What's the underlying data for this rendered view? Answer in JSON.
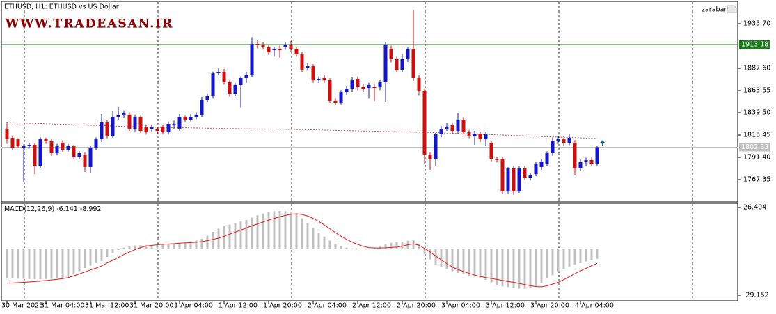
{
  "header": {
    "title": "ETHUSD, H1:  ETHUSD vs US Dollar",
    "watermark": "WWW.TRADEASAN.IR",
    "account": "zaraban"
  },
  "chart_data": [
    {
      "type": "candlestick",
      "x": [
        "30 Mar 2025",
        null,
        null,
        null,
        null,
        null,
        null,
        "31 Mar 04:00",
        null,
        null,
        null,
        null,
        null,
        null,
        null,
        "31 Mar 12:00",
        null,
        null,
        null,
        null,
        null,
        null,
        null,
        "31 Mar 20:00",
        null,
        null,
        null,
        null,
        null,
        null,
        null,
        "1 Apr 04:00",
        null,
        null,
        null,
        null,
        null,
        null,
        null,
        "1 Apr 12:00",
        null,
        null,
        null,
        null,
        null,
        null,
        null,
        "1 Apr 20:00",
        null,
        null,
        null,
        null,
        null,
        null,
        null,
        "2 Apr 04:00",
        null,
        null,
        null,
        null,
        null,
        null,
        null,
        "2 Apr 12:00",
        null,
        null,
        null,
        null,
        null,
        null,
        null,
        "2 Apr 20:00",
        null,
        null,
        null,
        null,
        null,
        null,
        null,
        "3 Apr 04:00",
        null,
        null,
        null,
        null,
        null,
        null,
        null,
        "3 Apr 12:00",
        null,
        null,
        null,
        null,
        null,
        null,
        null,
        "3 Apr 20:00",
        null,
        null,
        null,
        null,
        null,
        null,
        null,
        "4 Apr 04:00",
        null,
        null,
        null
      ],
      "open": [
        1822.2,
        1812.4,
        1810.9,
        1801.9,
        1803.4,
        1804.9,
        1782.4,
        1810.9,
        1808.7,
        1795.9,
        1807.2,
        1799.7,
        1803.4,
        1792.1,
        1794.4,
        1780.9,
        1801.9,
        1810.9,
        1829.7,
        1814.7,
        1835.0,
        1837.3,
        1837.3,
        1822.2,
        1835.0,
        1823.7,
        1821.5,
        1821.5,
        1824.5,
        1818.4,
        1825.9,
        1822.2,
        1835.0,
        1832.0,
        1835.0,
        1837.3,
        1853.8,
        1857.5,
        1882.3,
        1883.8,
        1872.6,
        1859.8,
        1869.6,
        1877.1,
        1880.1,
        1913.9,
        1912.4,
        1910.1,
        1907.1,
        1908.6,
        1910.1,
        1912.4,
        1908.6,
        1902.6,
        1887.6,
        1889.8,
        1874.8,
        1877.1,
        1874.8,
        1852.3,
        1850.0,
        1862.0,
        1865.0,
        1876.3,
        1867.3,
        1865.8,
        1867.3,
        1867.3,
        1872.6,
        1908.6,
        1897.4,
        1886.1,
        1897.4,
        1908.6,
        1877.1,
        1863.6,
        1794.4,
        1789.9,
        1816.2,
        1822.2,
        1825.9,
        1819.9,
        1832.0,
        1818.4,
        1814.7,
        1816.9,
        1810.9,
        1807.2,
        1789.9,
        1789.9,
        1754.6,
        1779.4,
        1754.6,
        1779.4,
        1769.6,
        1773.3,
        1780.9,
        1784.6,
        1795.9,
        1809.4,
        1810.9,
        1807.2,
        1807.2,
        1779.4,
        1786.1,
        1788.4,
        1784.6
      ],
      "high": [
        1829.7,
        1815.0,
        1812.0,
        1805.5,
        1807.0,
        1806.5,
        1813.0,
        1812.5,
        1811.0,
        1806.0,
        1810.0,
        1806.0,
        1805.0,
        1798.0,
        1797.0,
        1804.0,
        1813.0,
        1838.0,
        1832.0,
        1841.0,
        1845.5,
        1842.0,
        1840.0,
        1837.5,
        1837.0,
        1826.0,
        1826.0,
        1824.0,
        1827.0,
        1830.0,
        1831.0,
        1838.0,
        1837.0,
        1838.0,
        1840.0,
        1856.0,
        1860.0,
        1884.0,
        1888.0,
        1887.0,
        1875.0,
        1872.0,
        1879.0,
        1884.0,
        1921.0,
        1918.0,
        1916.0,
        1913.0,
        1911.0,
        1912.0,
        1915.5,
        1917.0,
        1911.0,
        1905.0,
        1893.0,
        1892.0,
        1879.0,
        1880.0,
        1877.0,
        1855.0,
        1864.0,
        1868.0,
        1878.0,
        1879.0,
        1870.0,
        1872.0,
        1870.0,
        1875.0,
        1916.0,
        1912.0,
        1900.0,
        1903.0,
        1911.0,
        1950.7,
        1880.0,
        1865.0,
        1797.0,
        1818.0,
        1825.0,
        1829.0,
        1828.0,
        1839.0,
        1835.0,
        1821.0,
        1820.0,
        1819.0,
        1819.0,
        1809.0,
        1792.0,
        1792.0,
        1781.0,
        1782.0,
        1781.5,
        1782.0,
        1775.0,
        1787.0,
        1789.5,
        1798.0,
        1813.0,
        1814.0,
        1814.5,
        1816.0,
        1810.0,
        1789.0,
        1791.0,
        1791.0,
        1803.8
      ],
      "low": [
        1806.0,
        1799.0,
        1801.0,
        1764.3,
        1801.0,
        1773.3,
        1780.0,
        1806.0,
        1793.0,
        1793.5,
        1797.0,
        1797.5,
        1790.0,
        1790.0,
        1775.5,
        1774.9,
        1799.5,
        1808.0,
        1812.0,
        1812.5,
        1832.0,
        1834.0,
        1820.0,
        1819.5,
        1817.5,
        1816.0,
        1819.0,
        1817.0,
        1816.5,
        1816.0,
        1822.0,
        1820.0,
        1829.5,
        1830.0,
        1832.5,
        1835.0,
        1851.0,
        1855.0,
        1880.0,
        1870.0,
        1857.0,
        1857.5,
        1845.0,
        1872.0,
        1878.0,
        1909.0,
        1907.5,
        1902.0,
        1900.0,
        1899.0,
        1907.5,
        1905.0,
        1900.0,
        1883.5,
        1885.0,
        1872.0,
        1872.0,
        1872.0,
        1850.0,
        1848.0,
        1848.0,
        1859.0,
        1862.0,
        1864.0,
        1862.0,
        1855.0,
        1852.0,
        1864.0,
        1851.0,
        1894.0,
        1883.0,
        1883.5,
        1894.5,
        1874.0,
        1858.0,
        1784.6,
        1778.0,
        1782.0,
        1813.0,
        1820.0,
        1817.0,
        1817.0,
        1816.0,
        1812.0,
        1805.0,
        1808.0,
        1804.0,
        1787.0,
        1786.0,
        1752.0,
        1752.5,
        1751.0,
        1753.0,
        1767.0,
        1766.5,
        1771.0,
        1778.0,
        1782.0,
        1793.0,
        1806.0,
        1804.0,
        1804.5,
        1772.0,
        1777.0,
        1782.5,
        1782.0,
        1782.5
      ],
      "close": [
        1810.9,
        1801.9,
        1803.4,
        1803.4,
        1804.9,
        1782.4,
        1810.9,
        1808.7,
        1795.9,
        1803.4,
        1799.7,
        1803.4,
        1792.1,
        1795.9,
        1780.9,
        1801.9,
        1810.9,
        1829.7,
        1814.7,
        1835.0,
        1837.3,
        1839.5,
        1822.2,
        1835.0,
        1819.9,
        1818.4,
        1823.7,
        1819.9,
        1818.4,
        1827.4,
        1827.4,
        1835.0,
        1832.0,
        1835.0,
        1837.3,
        1853.8,
        1857.5,
        1882.3,
        1883.8,
        1872.6,
        1859.8,
        1869.6,
        1877.1,
        1880.1,
        1913.9,
        1912.4,
        1910.1,
        1904.9,
        1908.6,
        1907.1,
        1912.4,
        1908.6,
        1902.6,
        1886.1,
        1889.8,
        1874.8,
        1876.3,
        1874.8,
        1852.3,
        1850.0,
        1862.0,
        1865.0,
        1874.8,
        1867.3,
        1865.0,
        1869.6,
        1865.8,
        1872.6,
        1912.4,
        1897.4,
        1886.1,
        1897.4,
        1908.6,
        1877.1,
        1863.6,
        1794.4,
        1789.9,
        1816.2,
        1822.2,
        1824.5,
        1819.9,
        1832.0,
        1818.4,
        1814.7,
        1816.9,
        1810.9,
        1816.2,
        1789.9,
        1788.4,
        1754.6,
        1779.4,
        1754.6,
        1779.4,
        1769.6,
        1771.8,
        1784.6,
        1786.9,
        1795.9,
        1809.4,
        1810.9,
        1807.2,
        1812.4,
        1779.4,
        1786.1,
        1788.4,
        1784.6,
        1802.33
      ],
      "up_color": "#1515c8",
      "down_color": "#cc1010",
      "ma": {
        "color": "#c84040",
        "values": [
          1829.0,
          1828.8,
          1828.6,
          1828.4,
          1828.2,
          1828.0,
          1827.8,
          1827.6,
          1827.4,
          1827.2,
          1827.0,
          1826.8,
          1826.6,
          1826.4,
          1826.2,
          1826.0,
          1825.8,
          1825.6,
          1825.4,
          1825.2,
          1825.0,
          1824.8,
          1824.6,
          1824.4,
          1824.2,
          1824.0,
          1823.8,
          1823.7,
          1823.6,
          1823.5,
          1823.4,
          1823.3,
          1823.2,
          1823.1,
          1823.0,
          1822.9,
          1822.8,
          1822.7,
          1822.6,
          1822.5,
          1822.4,
          1822.3,
          1822.2,
          1822.1,
          1822.0,
          1821.9,
          1821.8,
          1821.8,
          1821.7,
          1821.6,
          1821.6,
          1821.5,
          1821.4,
          1821.3,
          1821.1,
          1821.0,
          1820.9,
          1820.7,
          1820.6,
          1820.5,
          1820.3,
          1820.2,
          1820.1,
          1819.9,
          1819.8,
          1819.7,
          1819.5,
          1819.4,
          1819.3,
          1819.1,
          1819.0,
          1818.9,
          1818.7,
          1818.6,
          1818.5,
          1818.4,
          1818.2,
          1818.0,
          1817.8,
          1817.5,
          1817.3,
          1817.1,
          1816.9,
          1816.7,
          1816.5,
          1816.2,
          1816.0,
          1815.8,
          1815.6,
          1815.4,
          1815.2,
          1814.9,
          1814.7,
          1814.5,
          1814.3,
          1814.1,
          1813.8,
          1813.6,
          1813.4,
          1813.2,
          1813.0,
          1812.8,
          1812.6,
          1812.4,
          1812.2,
          1811.9,
          1811.7
        ]
      },
      "hline": {
        "value": 1913.18,
        "color": "#1a7a1a"
      },
      "last_color": "#c0c0c0",
      "ylim": [
        1743.3,
        1959.75
      ],
      "yticks": [
        {
          "value": 1935.7,
          "label": "1935.70"
        },
        {
          "value": 1887.6,
          "label": "1887.60"
        },
        1863.55,
        {
          "value": 1839.5,
          "label": "1839.50"
        },
        1815.45,
        {
          "value": 1791.4,
          "label": "1791.40"
        },
        1767.35
      ]
    },
    {
      "type": "macd",
      "title": "MACD(12,26,9)",
      "color": "#c0c0c0",
      "values": [
        -18.5,
        -18.6,
        -18.7,
        -18.8,
        -18.9,
        -19.0,
        -19.0,
        -18.9,
        -18.8,
        -18.6,
        -18.4,
        -18.2,
        -16.0,
        -14.0,
        -12.0,
        -10.5,
        -8.8,
        -7.5,
        -5.0,
        -2.5,
        -0.5,
        1.0,
        2.0,
        2.4,
        2.6,
        2.7,
        2.7,
        2.7,
        3.0,
        3.3,
        3.6,
        4.0,
        4.5,
        5.0,
        5.5,
        6.6,
        8.5,
        11.0,
        13.0,
        14.5,
        15.5,
        16.5,
        17.5,
        18.5,
        20.0,
        21.5,
        22.5,
        23.5,
        24.0,
        24.2,
        24.0,
        23.5,
        22.0,
        19.5,
        16.5,
        13.5,
        10.5,
        8.0,
        5.5,
        3.0,
        1.8,
        1.0,
        0.5,
        0.3,
        0.3,
        0.4,
        1.0,
        2.0,
        3.5,
        4.0,
        4.5,
        4.8,
        5.3,
        5.7,
        3.0,
        -3.0,
        -6.5,
        -9.7,
        -11.0,
        -12.5,
        -14.0,
        -15.0,
        -16.0,
        -16.8,
        -17.5,
        -18.5,
        -19.5,
        -21.0,
        -22.5,
        -23.5,
        -24.0,
        -24.6,
        -25.0,
        -25.0,
        -24.5,
        -23.8,
        -21.5,
        -18.5,
        -16.5,
        -14.0,
        -12.5,
        -11.0,
        -9.7,
        -8.8,
        -7.8,
        -7.0,
        -6.141
      ],
      "signal": {
        "color": "#e01818",
        "values": [
          -21.5,
          -21.4,
          -21.2,
          -21.0,
          -20.8,
          -20.5,
          -20.2,
          -19.9,
          -19.5,
          -19.1,
          -18.7,
          -18.0,
          -16.9,
          -15.7,
          -14.4,
          -13.2,
          -12.0,
          -10.6,
          -8.8,
          -7.0,
          -5.2,
          -3.4,
          -1.8,
          -0.3,
          1.0,
          2.0,
          2.4,
          2.8,
          3.1,
          3.3,
          3.5,
          3.8,
          4.0,
          4.2,
          4.4,
          4.8,
          5.4,
          6.2,
          7.0,
          8.2,
          9.5,
          10.8,
          12.1,
          13.4,
          14.8,
          16.0,
          17.2,
          18.4,
          19.5,
          20.5,
          21.4,
          22.1,
          22.4,
          22.0,
          21.0,
          19.5,
          17.6,
          15.3,
          12.9,
          10.5,
          8.2,
          6.2,
          4.5,
          3.0,
          1.8,
          1.0,
          0.8,
          0.8,
          0.9,
          1.1,
          1.3,
          1.9,
          2.8,
          3.4,
          2.5,
          0.5,
          -1.8,
          -4.3,
          -6.8,
          -9.2,
          -11.3,
          -12.9,
          -14.2,
          -15.3,
          -16.4,
          -17.3,
          -18.0,
          -18.6,
          -19.2,
          -19.8,
          -20.5,
          -21.0,
          -21.7,
          -22.4,
          -23.1,
          -23.7,
          -23.8,
          -23.2,
          -22.1,
          -21.0,
          -19.3,
          -17.5,
          -15.5,
          -13.8,
          -12.1,
          -10.5,
          -8.992
        ]
      },
      "ylim": [
        -32.68,
        29.05
      ],
      "yticks": [
        26.404,
        -29.152
      ]
    }
  ]
}
